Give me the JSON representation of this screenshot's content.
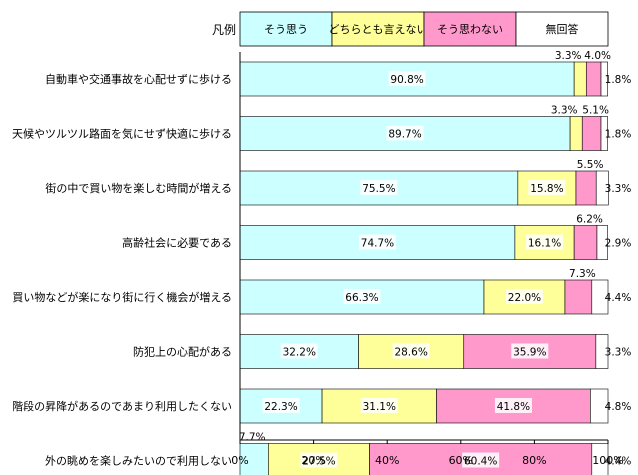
{
  "chart_data": {
    "type": "bar",
    "orientation": "horizontal",
    "stacked": "percent",
    "legend_title": "凡例",
    "legend_position": "top",
    "categories": [
      "自動車や交通事故を心配せずに歩ける",
      "天候やツルツル路面を気にせず快適に歩ける",
      "街の中で買い物を楽しむ時間が増える",
      "高齢社会に必要である",
      "買い物などが楽になり街に行く機会が増える",
      "防犯上の心配がある",
      "階段の昇降があるのであまり利用したくない",
      "外の眺めを楽しみたいので利用しない"
    ],
    "series": [
      {
        "name": "そう思う",
        "color": "#ccffff",
        "values": [
          90.8,
          89.7,
          75.5,
          74.7,
          66.3,
          32.2,
          22.3,
          7.7
        ]
      },
      {
        "name": "どちらとも言えない",
        "color": "#ffff99",
        "values": [
          3.3,
          3.3,
          15.8,
          16.1,
          22.0,
          28.6,
          31.1,
          27.5
        ]
      },
      {
        "name": "そう思わない",
        "color": "#ff99cc",
        "values": [
          4.0,
          5.1,
          5.5,
          6.2,
          7.3,
          35.9,
          41.8,
          60.4
        ]
      },
      {
        "name": "無回答",
        "color": "#ffffff",
        "values": [
          1.8,
          1.8,
          3.3,
          2.9,
          4.4,
          3.3,
          4.8,
          4.4
        ]
      }
    ],
    "labels": [
      [
        "90.8%",
        "3.3%",
        "4.0%",
        "1.8%"
      ],
      [
        "89.7%",
        "3.3%",
        "5.1%",
        "1.8%"
      ],
      [
        "75.5%",
        "15.8%",
        "5.5%",
        "3.3%"
      ],
      [
        "74.7%",
        "16.1%",
        "6.2%",
        "2.9%"
      ],
      [
        "66.3%",
        "22.0%",
        "7.3%",
        "4.4%"
      ],
      [
        "32.2%",
        "28.6%",
        "35.9%",
        "3.3%"
      ],
      [
        "22.3%",
        "31.1%",
        "41.8%",
        "4.8%"
      ],
      [
        "7.7%",
        "27.5%",
        "60.4%",
        "4.4%"
      ]
    ],
    "xlim": [
      0,
      100
    ],
    "xticks": [
      "0%",
      "20%",
      "40%",
      "60%",
      "80%",
      "100%"
    ],
    "grid": false
  }
}
